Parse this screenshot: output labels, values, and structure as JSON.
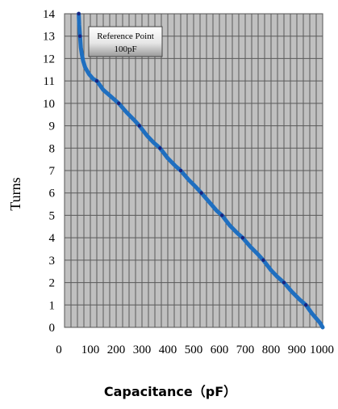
{
  "chart_data": {
    "type": "line",
    "title": "",
    "xlabel": "Capacitance（pF）",
    "ylabel": "Turns",
    "xlim": [
      0,
      1000
    ],
    "ylim": [
      0,
      14
    ],
    "xticks": [
      0,
      100,
      200,
      300,
      400,
      500,
      600,
      700,
      800,
      900,
      1000
    ],
    "yticks": [
      0,
      1,
      2,
      3,
      4,
      5,
      6,
      7,
      8,
      9,
      10,
      11,
      12,
      13,
      14
    ],
    "grid": true,
    "background": "#c0c0c0",
    "series_color": "#1f6fc0",
    "marker_color": "#1a237e",
    "series": [
      {
        "x": [
          55,
          57,
          60,
          63,
          67,
          72,
          80,
          95,
          110,
          125,
          150,
          180,
          210,
          240,
          270,
          290,
          320,
          345,
          370,
          400,
          430,
          450,
          480,
          510,
          530,
          560,
          590,
          610,
          640,
          670,
          690,
          720,
          750,
          770,
          800,
          825,
          850,
          880,
          910,
          935,
          960,
          990,
          1000
        ],
        "y": [
          14,
          13.5,
          13,
          12.5,
          12.2,
          11.9,
          11.6,
          11.3,
          11.1,
          11,
          10.6,
          10.3,
          10,
          9.6,
          9.25,
          9,
          8.55,
          8.25,
          8,
          7.55,
          7.2,
          7,
          6.6,
          6.25,
          6,
          5.6,
          5.2,
          5,
          4.55,
          4.2,
          4,
          3.6,
          3.25,
          3,
          2.55,
          2.25,
          2,
          1.6,
          1.25,
          1,
          0.6,
          0.2,
          0
        ]
      }
    ],
    "markers": {
      "x": [
        55,
        60,
        125,
        210,
        290,
        370,
        450,
        530,
        610,
        690,
        770,
        850,
        935
      ],
      "y": [
        14,
        13,
        11,
        10,
        9,
        8,
        7,
        6,
        5,
        4,
        3,
        2,
        1
      ]
    },
    "annotation": {
      "line1": "Reference Point",
      "line2": "100pF"
    }
  }
}
